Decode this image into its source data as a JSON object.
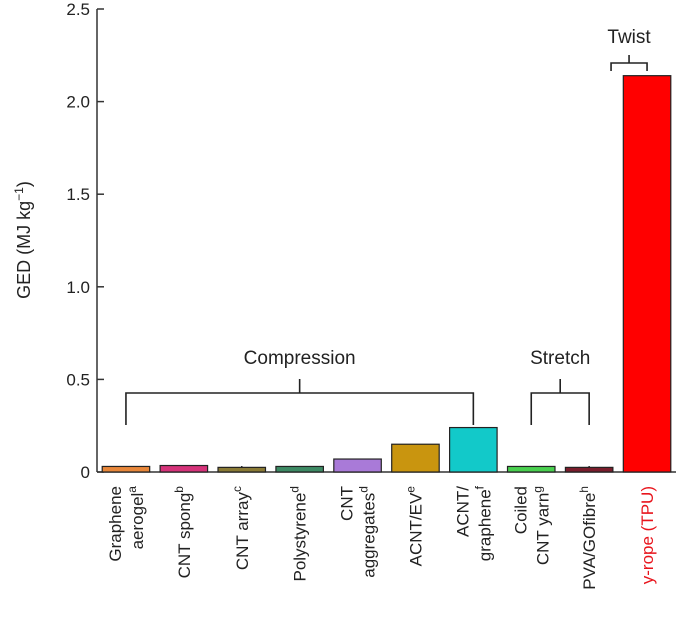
{
  "chart_data": {
    "type": "bar",
    "ylabel": "GED (MJ kg",
    "ylabel_sup": "−1",
    "ylabel_end": ")",
    "ylim": [
      0,
      2.5
    ],
    "yticks": [
      "0",
      "0.5",
      "1.0",
      "1.5",
      "2.0",
      "2.5"
    ],
    "bars": [
      {
        "lines": [
          "Graphene",
          "aerogel"
        ],
        "sup": "a",
        "value": 0.03,
        "color": "#e8873a",
        "label_color": "#222222"
      },
      {
        "lines": [
          "CNT spong"
        ],
        "sup": "b",
        "value": 0.035,
        "color": "#d6337a",
        "label_color": "#222222"
      },
      {
        "lines": [
          "CNT array"
        ],
        "sup": "c",
        "value": 0.025,
        "color": "#8a7a35",
        "label_color": "#222222"
      },
      {
        "lines": [
          "Polystyrene"
        ],
        "sup": "d",
        "value": 0.03,
        "color": "#3d8a64",
        "label_color": "#222222"
      },
      {
        "lines": [
          "CNT",
          "aggregates"
        ],
        "sup": "d",
        "value": 0.07,
        "color": "#a97ad8",
        "label_color": "#222222"
      },
      {
        "lines": [
          "ACNT/EV"
        ],
        "sup": "e",
        "value": 0.15,
        "color": "#c9950f",
        "label_color": "#222222"
      },
      {
        "lines": [
          "ACNT/",
          "graphene"
        ],
        "sup": "f",
        "value": 0.24,
        "color": "#12c9c9",
        "label_color": "#222222"
      },
      {
        "lines": [
          "Coiled",
          "CNT yarn"
        ],
        "sup": "g",
        "value": 0.03,
        "color": "#49d04f",
        "label_color": "#222222"
      },
      {
        "lines": [
          "PVA/GOfibre"
        ],
        "sup": "h",
        "value": 0.025,
        "color": "#7a1d2c",
        "label_color": "#222222"
      },
      {
        "lines": [
          "y-rope (TPU)"
        ],
        "sup": "",
        "value": 2.14,
        "color": "#ff0000",
        "label_color": "#e8141c"
      }
    ],
    "groups": [
      {
        "label": "Compression",
        "from": 0,
        "to": 6
      },
      {
        "label": "Stretch",
        "from": 7,
        "to": 8
      },
      {
        "label": "Twist",
        "from": 9,
        "to": 9
      }
    ]
  }
}
